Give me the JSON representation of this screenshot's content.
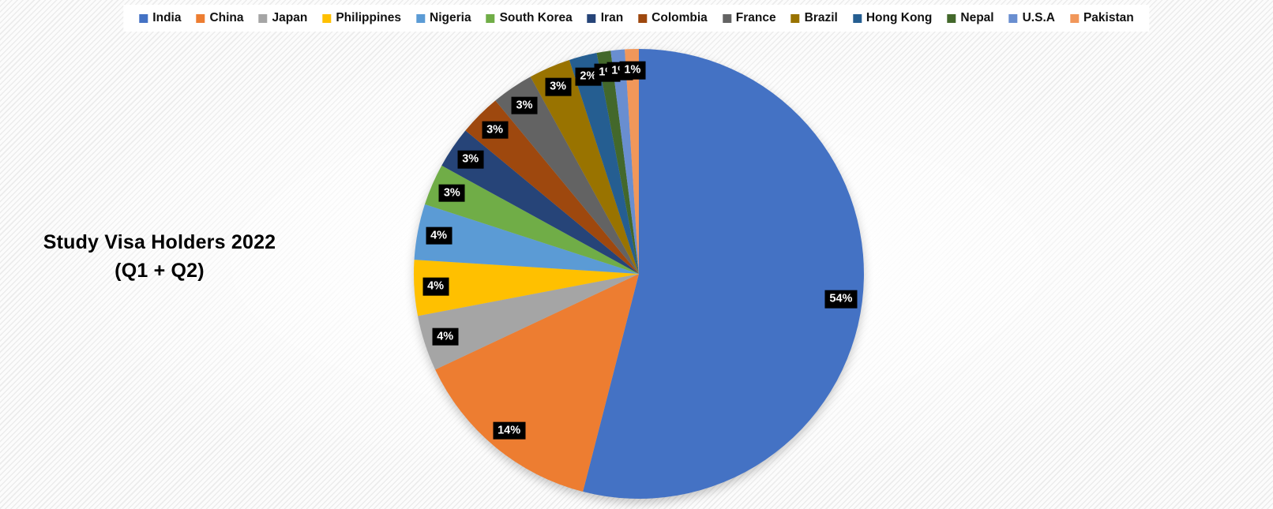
{
  "chart_data": {
    "type": "pie",
    "title": "Study Visa Holders 2022 (Q1 + Q2)",
    "title_lines": [
      "Study Visa Holders 2022",
      "(Q1 + Q2)"
    ],
    "legend_position": "top",
    "direction": "clockwise",
    "start_angle_deg": 0,
    "categories": [
      "India",
      "China",
      "Japan",
      "Philippines",
      "Nigeria",
      "South Korea",
      "Iran",
      "Colombia",
      "France",
      "Brazil",
      "Hong Kong",
      "Nepal",
      "U.S.A",
      "Pakistan"
    ],
    "values": [
      54,
      14,
      4,
      4,
      4,
      3,
      3,
      3,
      3,
      3,
      2,
      1,
      1,
      1
    ],
    "data_labels": [
      "54%",
      "14%",
      "4%",
      "4%",
      "4%",
      "3%",
      "3%",
      "3%",
      "3%",
      "3%",
      "2%",
      "1%",
      "1%",
      "1%"
    ],
    "colors": [
      "#4472C4",
      "#ED7D31",
      "#A5A5A5",
      "#FFC000",
      "#5B9BD5",
      "#70AD47",
      "#264478",
      "#9E480E",
      "#636363",
      "#997300",
      "#255E91",
      "#43682B",
      "#698ED0",
      "#F1975A"
    ],
    "data_label_style": {
      "background": "#000000",
      "text_color": "#FFFFFF"
    }
  }
}
